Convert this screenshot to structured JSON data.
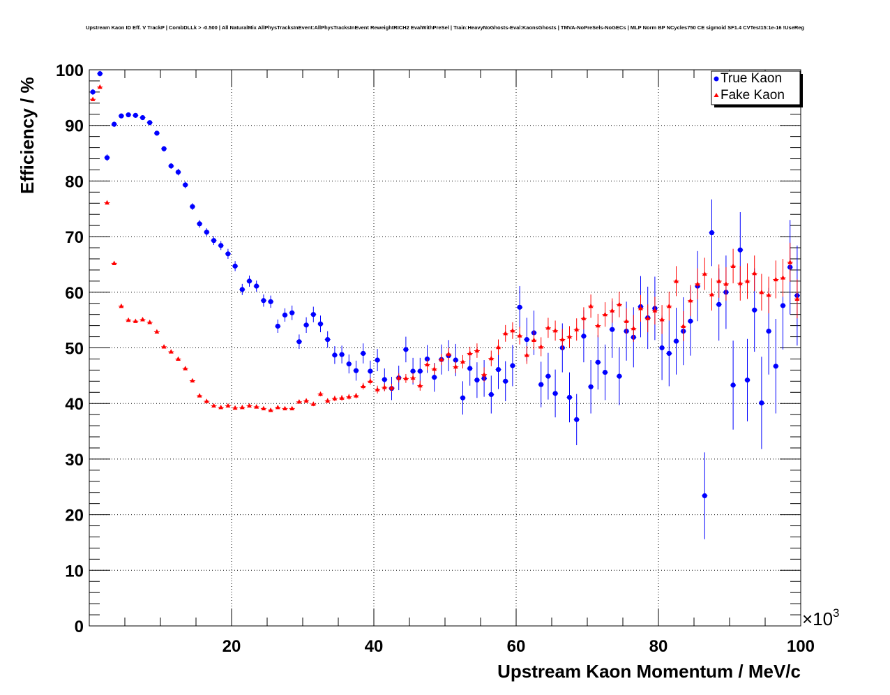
{
  "chart_data": {
    "type": "scatter",
    "title": "Upstream Kaon ID Eff. V TrackP | CombDLLk > -0.500 | All NaturalMix AllPhysTracksInEvent:AllPhysTracksInEvent ReweightRICH2 EvalWithPreSel | Train:HeavyNoGhosts-Eval:KaonsGhosts | TMVA-NoPreSels-NoGECs | MLP Norm BP NCycles750 CE sigmoid SF1.4 CVTest15:1e-16 !UseReg",
    "xlabel": "Upstream Kaon Momentum / MeV/c",
    "ylabel": "Efficiency / %",
    "x_multiplier": "×10",
    "x_multiplier_exp": "3",
    "xlim": [
      0,
      100
    ],
    "ylim": [
      0,
      100
    ],
    "x_ticks": [
      20,
      40,
      60,
      80,
      100
    ],
    "y_ticks": [
      0,
      10,
      20,
      30,
      40,
      50,
      60,
      70,
      80,
      90,
      100
    ],
    "x_units_note": "x values in GeV/c (×10^3 MeV/c)",
    "grid": true,
    "legend_position": "top-right",
    "series": [
      {
        "name": "True Kaon",
        "color": "#0000ff",
        "marker": "circle",
        "x": [
          0.5,
          1.5,
          2.5,
          3.5,
          4.5,
          5.5,
          6.5,
          7.5,
          8.5,
          9.5,
          10.5,
          11.5,
          12.5,
          13.5,
          14.5,
          15.5,
          16.5,
          17.5,
          18.5,
          19.5,
          20.5,
          21.5,
          22.5,
          23.5,
          24.5,
          25.5,
          26.5,
          27.5,
          28.5,
          29.5,
          30.5,
          31.5,
          32.5,
          33.5,
          34.5,
          35.5,
          36.5,
          37.5,
          38.5,
          39.5,
          40.5,
          41.5,
          42.5,
          43.5,
          44.5,
          45.5,
          46.5,
          47.5,
          48.5,
          49.5,
          50.5,
          51.5,
          52.5,
          53.5,
          54.5,
          55.5,
          56.5,
          57.5,
          58.5,
          59.5,
          60.5,
          61.5,
          62.5,
          63.5,
          64.5,
          65.5,
          66.5,
          67.5,
          68.5,
          69.5,
          70.5,
          71.5,
          72.5,
          73.5,
          74.5,
          75.5,
          76.5,
          77.5,
          78.5,
          79.5,
          80.5,
          81.5,
          82.5,
          83.5,
          84.5,
          85.5,
          86.5,
          87.5,
          88.5,
          89.5,
          90.5,
          91.5,
          92.5,
          93.5,
          94.5,
          95.5,
          96.5,
          97.5,
          98.5,
          99.5
        ],
        "y": [
          96.0,
          99.3,
          84.2,
          90.2,
          91.7,
          91.9,
          91.8,
          91.4,
          90.5,
          88.6,
          85.8,
          82.7,
          81.6,
          79.3,
          75.4,
          72.3,
          70.8,
          69.3,
          68.4,
          66.9,
          64.7,
          60.5,
          62.0,
          61.1,
          58.5,
          58.3,
          53.9,
          55.9,
          56.3,
          51.1,
          54.1,
          56.0,
          54.3,
          51.5,
          48.7,
          48.8,
          47.1,
          45.9,
          49.0,
          45.8,
          47.8,
          44.3,
          42.7,
          44.6,
          49.7,
          45.8,
          45.8,
          48.0,
          44.7,
          47.9,
          48.6,
          47.8,
          41.0,
          46.3,
          44.2,
          44.5,
          41.6,
          46.1,
          44.0,
          46.8,
          57.3,
          51.5,
          52.7,
          43.4,
          44.9,
          41.8,
          50.0,
          41.1,
          37.1,
          52.1,
          43.0,
          47.4,
          45.6,
          53.3,
          44.9,
          53.0,
          51.9,
          57.4,
          55.4,
          57.1,
          50.0,
          49.0,
          51.2,
          53.0,
          54.8,
          61.1,
          23.4,
          70.7,
          57.8,
          60.0,
          43.3,
          67.6,
          44.2,
          56.8,
          40.1,
          53.0,
          46.7,
          57.6,
          64.5,
          59.4
        ],
        "yerr": [
          0.5,
          0.5,
          0.6,
          0.5,
          0.4,
          0.4,
          0.4,
          0.4,
          0.4,
          0.4,
          0.5,
          0.5,
          0.6,
          0.6,
          0.6,
          0.7,
          0.7,
          0.8,
          0.8,
          0.9,
          0.9,
          1.0,
          1.0,
          1.0,
          1.1,
          1.1,
          1.2,
          1.2,
          1.3,
          1.3,
          1.4,
          1.4,
          1.5,
          1.5,
          1.6,
          1.6,
          1.7,
          1.8,
          1.8,
          1.9,
          2.0,
          2.0,
          2.1,
          2.2,
          2.3,
          2.4,
          2.4,
          2.5,
          2.6,
          2.7,
          2.8,
          2.9,
          3.0,
          3.1,
          3.2,
          3.3,
          3.4,
          3.5,
          3.6,
          3.7,
          3.8,
          3.9,
          4.0,
          4.1,
          4.2,
          4.3,
          4.4,
          4.5,
          4.6,
          4.7,
          4.8,
          4.9,
          5.0,
          5.1,
          5.2,
          5.3,
          5.4,
          5.5,
          5.6,
          5.7,
          5.8,
          5.9,
          6.0,
          6.1,
          6.2,
          6.3,
          7.8,
          6.0,
          6.5,
          6.6,
          8.0,
          6.8,
          7.4,
          7.5,
          8.3,
          7.8,
          8.5,
          7.9,
          8.5,
          9.0
        ]
      },
      {
        "name": "Fake Kaon",
        "color": "#ff0000",
        "marker": "triangle",
        "x": [
          0.5,
          1.5,
          2.5,
          3.5,
          4.5,
          5.5,
          6.5,
          7.5,
          8.5,
          9.5,
          10.5,
          11.5,
          12.5,
          13.5,
          14.5,
          15.5,
          16.5,
          17.5,
          18.5,
          19.5,
          20.5,
          21.5,
          22.5,
          23.5,
          24.5,
          25.5,
          26.5,
          27.5,
          28.5,
          29.5,
          30.5,
          31.5,
          32.5,
          33.5,
          34.5,
          35.5,
          36.5,
          37.5,
          38.5,
          39.5,
          40.5,
          41.5,
          42.5,
          43.5,
          44.5,
          45.5,
          46.5,
          47.5,
          48.5,
          49.5,
          50.5,
          51.5,
          52.5,
          53.5,
          54.5,
          55.5,
          56.5,
          57.5,
          58.5,
          59.5,
          60.5,
          61.5,
          62.5,
          63.5,
          64.5,
          65.5,
          66.5,
          67.5,
          68.5,
          69.5,
          70.5,
          71.5,
          72.5,
          73.5,
          74.5,
          75.5,
          76.5,
          77.5,
          78.5,
          79.5,
          80.5,
          81.5,
          82.5,
          83.5,
          84.5,
          85.5,
          86.5,
          87.5,
          88.5,
          89.5,
          90.5,
          91.5,
          92.5,
          93.5,
          94.5,
          95.5,
          96.5,
          97.5,
          98.5,
          99.5
        ],
        "y": [
          94.7,
          96.9,
          76.1,
          65.2,
          57.5,
          55.0,
          54.8,
          55.1,
          54.6,
          52.9,
          50.2,
          49.3,
          48.0,
          46.3,
          44.1,
          41.4,
          40.4,
          39.6,
          39.3,
          39.6,
          39.2,
          39.3,
          39.6,
          39.4,
          39.1,
          38.8,
          39.3,
          39.1,
          39.1,
          40.3,
          40.5,
          39.9,
          41.7,
          40.5,
          40.9,
          41.0,
          41.2,
          41.4,
          43.1,
          44.0,
          42.5,
          42.9,
          42.8,
          44.6,
          44.5,
          44.6,
          43.2,
          47.0,
          46.2,
          47.9,
          48.9,
          46.6,
          47.5,
          49.0,
          49.5,
          45.2,
          48.1,
          50.1,
          52.6,
          53.1,
          52.2,
          48.7,
          51.4,
          50.2,
          53.6,
          53.1,
          51.5,
          52.0,
          53.3,
          55.3,
          57.5,
          54.0,
          56.0,
          56.7,
          57.8,
          54.8,
          53.5,
          57.1,
          55.3,
          56.7,
          55.1,
          57.5,
          62.0,
          53.9,
          58.5,
          61.5,
          63.3,
          59.6,
          62.0,
          61.5,
          64.7,
          61.6,
          62.0,
          63.4,
          60.0,
          59.5,
          62.3,
          62.6,
          65.4,
          58.8
        ],
        "yerr": [
          0.3,
          0.3,
          0.3,
          0.3,
          0.2,
          0.2,
          0.2,
          0.2,
          0.2,
          0.2,
          0.2,
          0.2,
          0.2,
          0.2,
          0.2,
          0.2,
          0.2,
          0.2,
          0.2,
          0.2,
          0.2,
          0.2,
          0.2,
          0.3,
          0.3,
          0.3,
          0.3,
          0.3,
          0.3,
          0.3,
          0.4,
          0.4,
          0.4,
          0.4,
          0.5,
          0.5,
          0.5,
          0.5,
          0.6,
          0.6,
          0.7,
          0.7,
          0.7,
          0.8,
          0.8,
          0.9,
          0.9,
          1.0,
          1.0,
          1.0,
          1.1,
          1.1,
          1.2,
          1.2,
          1.3,
          1.3,
          1.4,
          1.4,
          1.5,
          1.5,
          1.6,
          1.6,
          1.7,
          1.7,
          1.8,
          1.8,
          1.9,
          1.9,
          2.0,
          2.0,
          2.1,
          2.1,
          2.2,
          2.2,
          2.3,
          2.3,
          2.4,
          2.4,
          2.5,
          2.5,
          2.6,
          2.6,
          2.7,
          2.7,
          2.8,
          2.8,
          2.9,
          2.9,
          3.0,
          3.0,
          3.1,
          3.1,
          3.2,
          3.2,
          3.3,
          3.3,
          3.4,
          3.4,
          3.5,
          3.5
        ]
      }
    ]
  }
}
